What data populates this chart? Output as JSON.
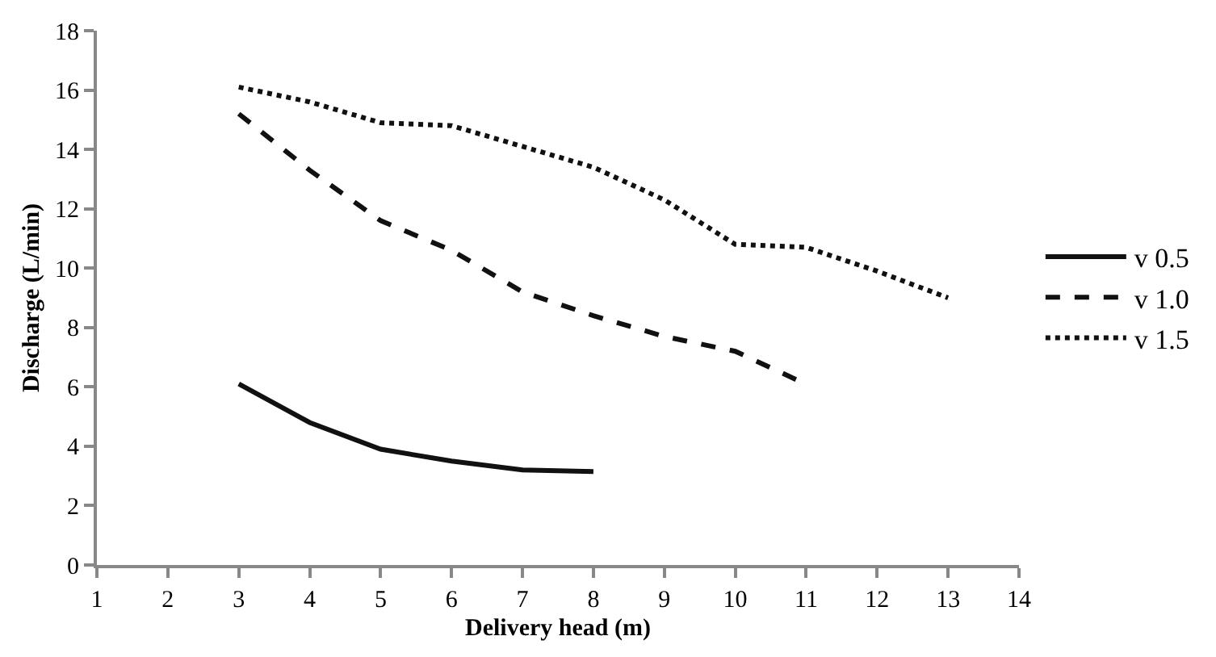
{
  "chart_data": {
    "type": "line",
    "xlabel": "Delivery head (m)",
    "ylabel": "Discharge (L/min)",
    "xlim": [
      1,
      14
    ],
    "xticks": [
      1,
      2,
      3,
      4,
      5,
      6,
      7,
      8,
      9,
      10,
      11,
      12,
      13,
      14
    ],
    "ylim": [
      0,
      18
    ],
    "yticks": [
      0,
      2,
      4,
      6,
      8,
      10,
      12,
      14,
      16,
      18
    ],
    "grid": false,
    "legend": "right",
    "marker": "none",
    "series": [
      {
        "name": "v 0.5",
        "color": "#111111",
        "line_style": "solid",
        "x": [
          3,
          4,
          5,
          6,
          7,
          8
        ],
        "values": [
          6.1,
          4.8,
          3.9,
          3.5,
          3.2,
          3.15
        ]
      },
      {
        "name": "v 1.0",
        "color": "#111111",
        "line_style": "dashed",
        "x": [
          3,
          4,
          5,
          6,
          7,
          8,
          9,
          10,
          10.9
        ],
        "values": [
          15.2,
          13.3,
          11.6,
          10.6,
          9.2,
          8.4,
          7.7,
          7.2,
          6.2
        ]
      },
      {
        "name": "v 1.5",
        "color": "#111111",
        "line_style": "dotted",
        "x": [
          3,
          4,
          5,
          6,
          7,
          8,
          9,
          10,
          11,
          12,
          13
        ],
        "values": [
          16.1,
          15.6,
          14.9,
          14.8,
          14.1,
          13.4,
          12.3,
          10.8,
          10.7,
          9.9,
          9.0
        ]
      }
    ]
  }
}
